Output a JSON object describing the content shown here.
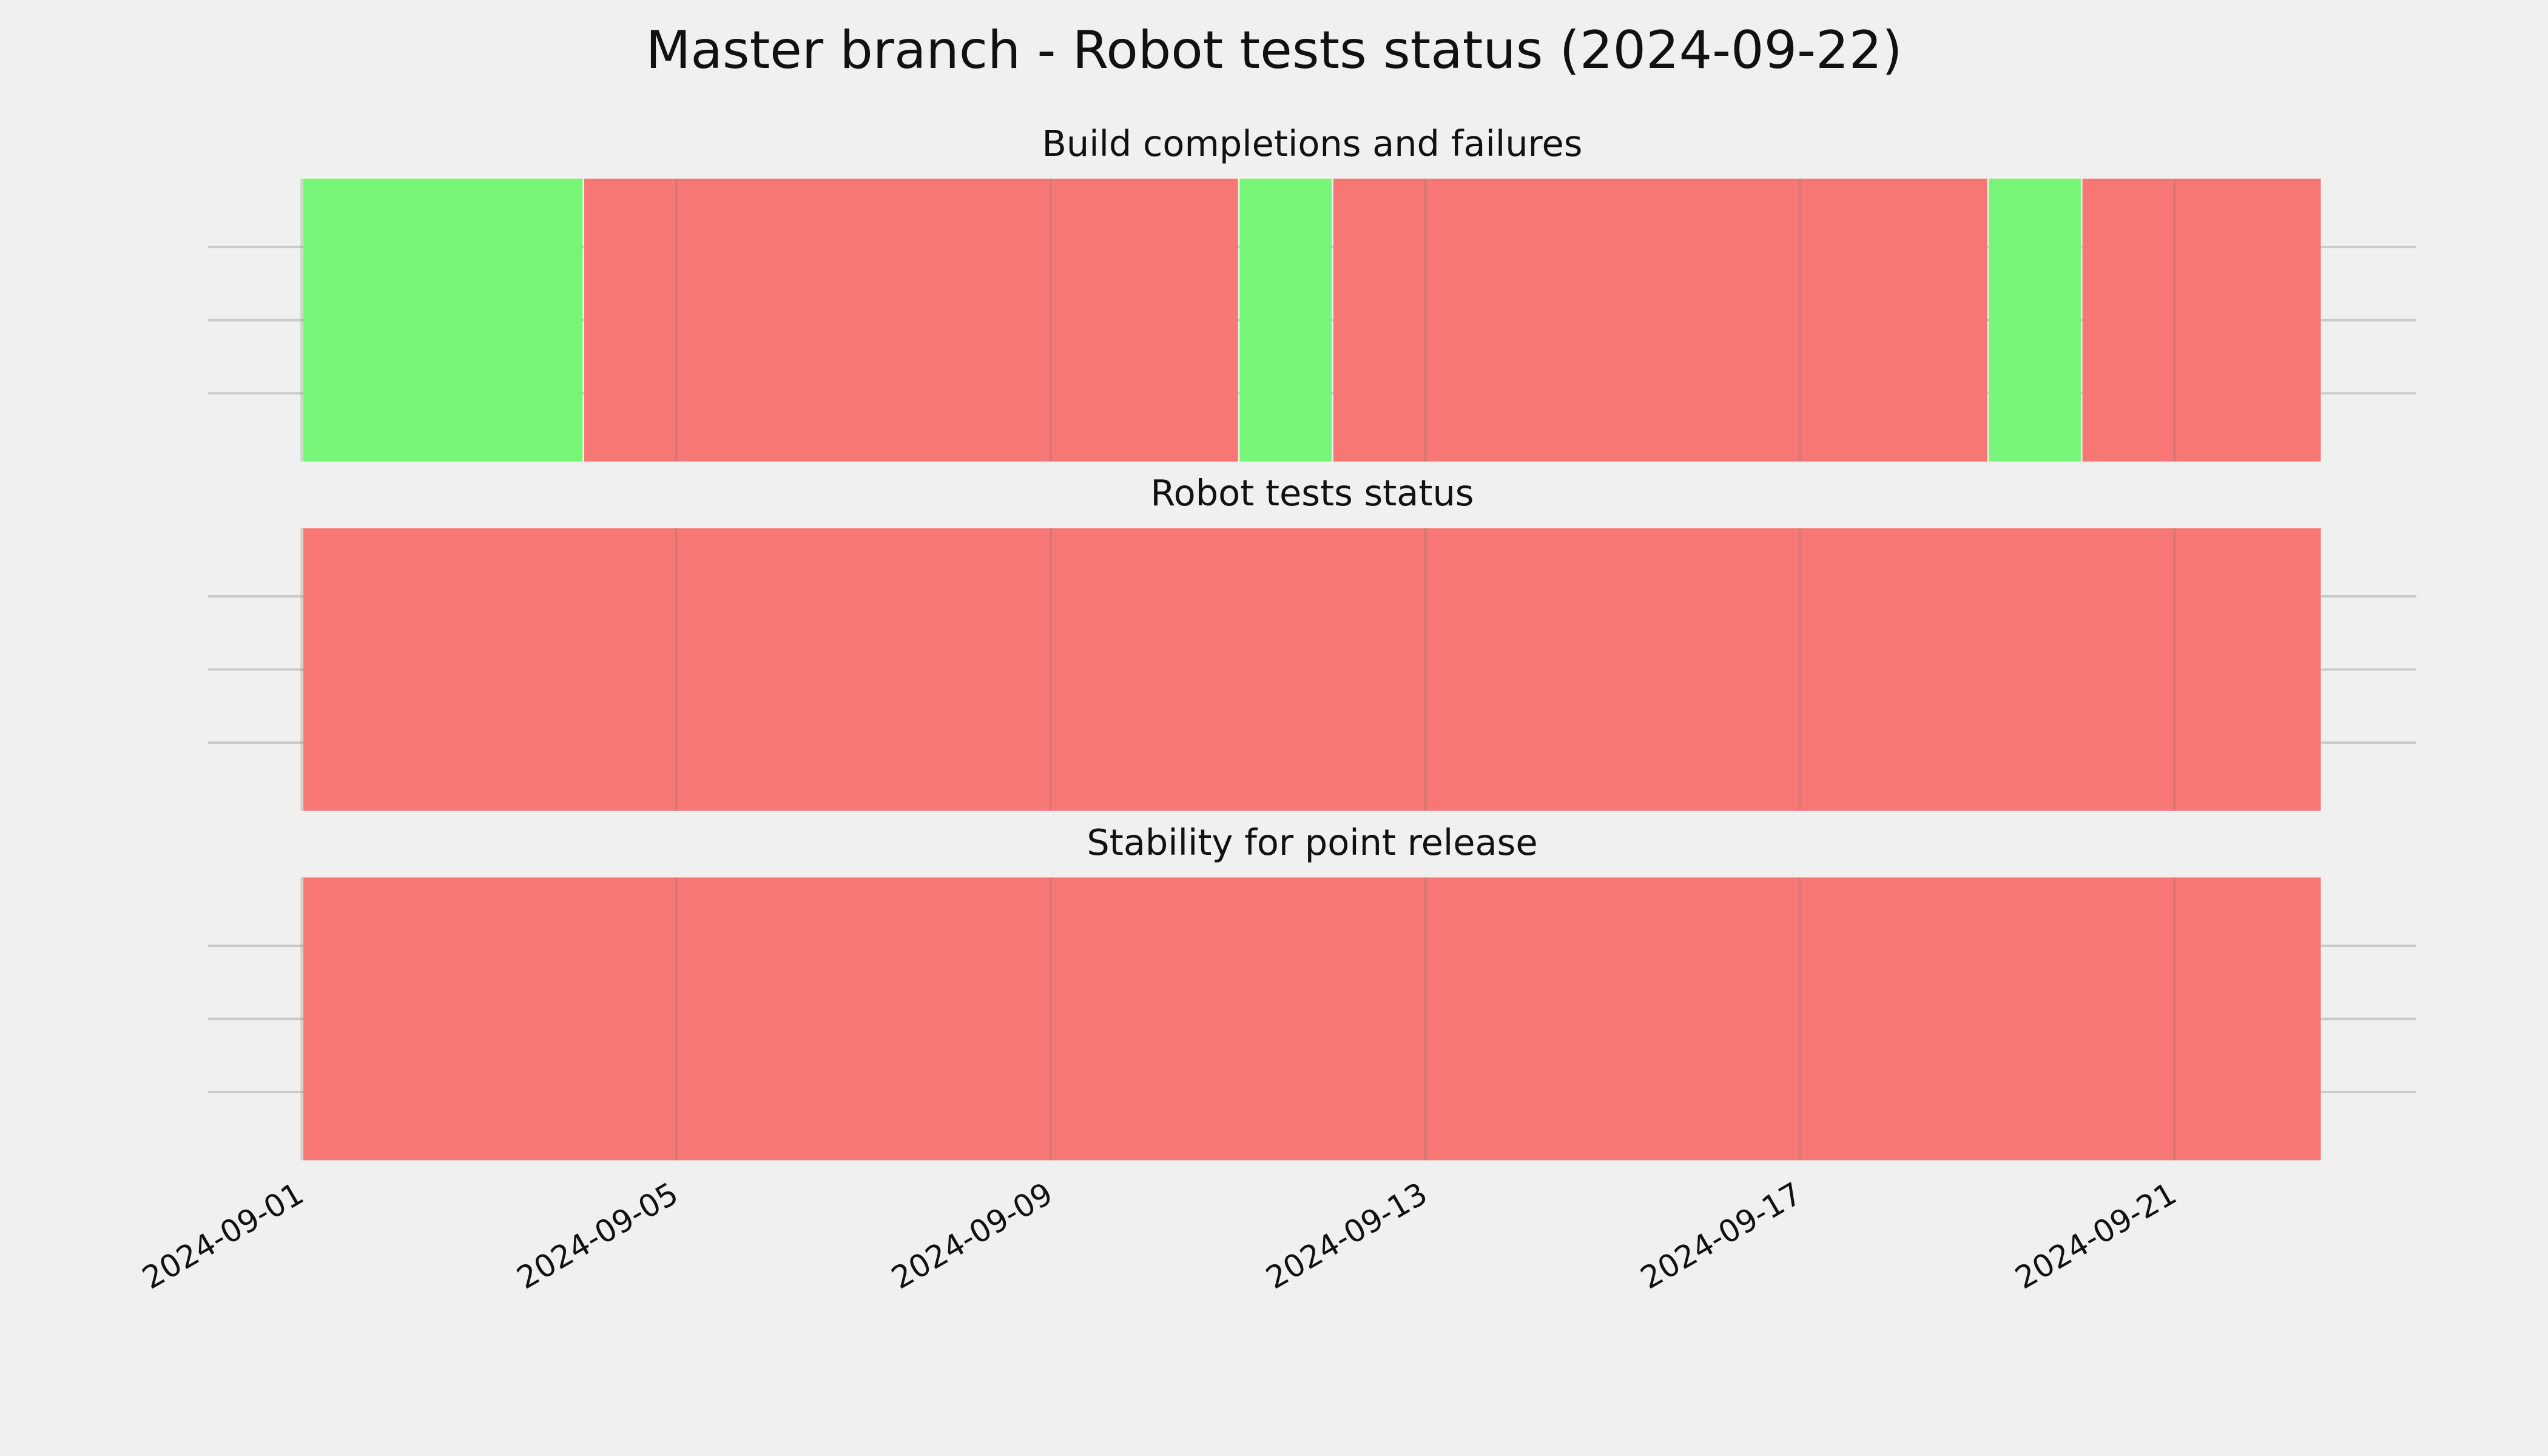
{
  "title": "Master branch - Robot tests status (2024-09-22)",
  "chart_data": [
    {
      "type": "timeline",
      "title": "Build completions and failures",
      "x": [
        "2024-09-01",
        "2024-09-04",
        "2024-09-11",
        "2024-09-12",
        "2024-09-19",
        "2024-09-20"
      ],
      "x_end": [
        "2024-09-04",
        "2024-09-11",
        "2024-09-12",
        "2024-09-19",
        "2024-09-20",
        "2024-09-22T13:30Z"
      ],
      "colors": [
        "#76f576",
        "#f77775",
        "#76f576",
        "#f77775",
        "#76f576",
        "#f77775"
      ],
      "xlim": [
        "2024-08-31",
        "2024-09-23T14:00Z"
      ],
      "xticks": [
        "2024-09-01",
        "2024-09-05",
        "2024-09-09",
        "2024-09-13",
        "2024-09-17",
        "2024-09-21"
      ],
      "grid": true
    },
    {
      "type": "timeline",
      "title": "Robot tests status",
      "x": [
        "2024-09-01"
      ],
      "x_end": [
        "2024-09-22T13:30Z"
      ],
      "colors": [
        "#f77775"
      ],
      "xlim": [
        "2024-08-31",
        "2024-09-23T14:00Z"
      ],
      "xticks": [
        "2024-09-01",
        "2024-09-05",
        "2024-09-09",
        "2024-09-13",
        "2024-09-17",
        "2024-09-21"
      ],
      "grid": true
    },
    {
      "type": "timeline",
      "title": "Stability for point release",
      "x": [
        "2024-09-01"
      ],
      "x_end": [
        "2024-09-22T13:30Z"
      ],
      "colors": [
        "#f77775"
      ],
      "xlim": [
        "2024-08-31",
        "2024-09-23T14:00Z"
      ],
      "xticks": [
        "2024-09-01",
        "2024-09-05",
        "2024-09-09",
        "2024-09-13",
        "2024-09-17",
        "2024-09-21"
      ],
      "grid": true
    }
  ]
}
